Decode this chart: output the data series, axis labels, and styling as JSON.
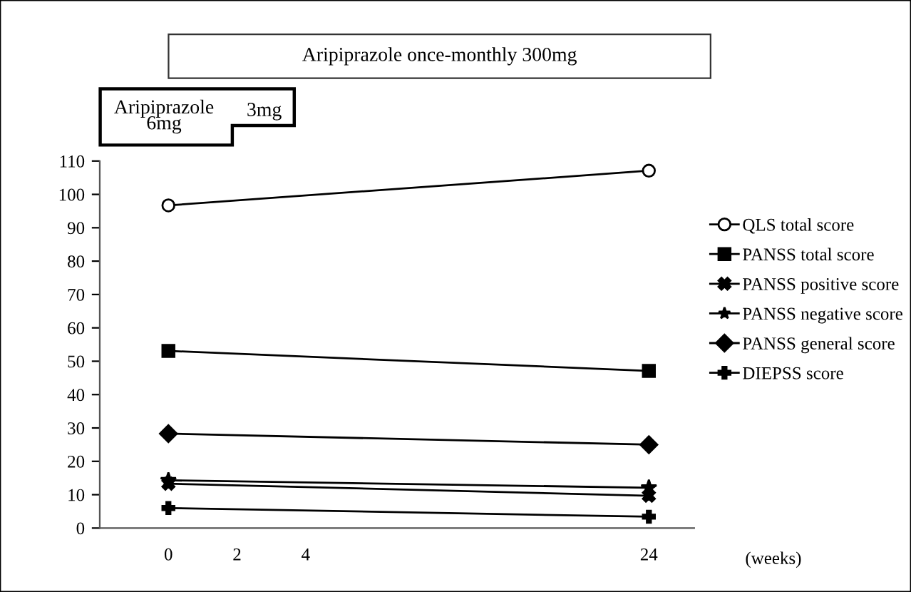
{
  "chart_data": {
    "type": "line",
    "annotations": [
      "Aripiprazole once-monthly 300mg",
      "Aripiprazole\n6mg",
      "3mg"
    ],
    "xlabel": "(weeks)",
    "categories": [
      "0",
      "2",
      "4",
      null,
      null,
      null,
      null,
      "24"
    ],
    "ylim": [
      0,
      110
    ],
    "yticks": [
      0,
      10,
      20,
      30,
      40,
      50,
      60,
      70,
      80,
      90,
      100,
      110
    ],
    "grid": false,
    "legend": "right",
    "series": [
      {
        "name": "QLS total score",
        "color": "#000000",
        "marker": "circle",
        "values": [
          96.7,
          null,
          null,
          null,
          null,
          null,
          null,
          107.1
        ]
      },
      {
        "name": "PANSS total score",
        "color": "#000000",
        "marker": "square",
        "values": [
          53.1,
          null,
          null,
          null,
          null,
          null,
          null,
          47.1
        ]
      },
      {
        "name": "PANSS positive score",
        "color": "#000000",
        "marker": "x",
        "values": [
          13.3,
          null,
          null,
          null,
          null,
          null,
          null,
          9.7
        ]
      },
      {
        "name": "PANSS negative score",
        "color": "#000000",
        "marker": "star",
        "values": [
          14.3,
          null,
          null,
          null,
          null,
          null,
          null,
          12.1
        ]
      },
      {
        "name": "PANSS general score",
        "color": "#000000",
        "marker": "diamond",
        "values": [
          28.3,
          null,
          null,
          null,
          null,
          null,
          null,
          25.0
        ]
      },
      {
        "name": "DIEPSS score",
        "color": "#000000",
        "marker": "cross",
        "values": [
          6.0,
          null,
          null,
          null,
          null,
          null,
          null,
          3.4
        ]
      }
    ]
  }
}
